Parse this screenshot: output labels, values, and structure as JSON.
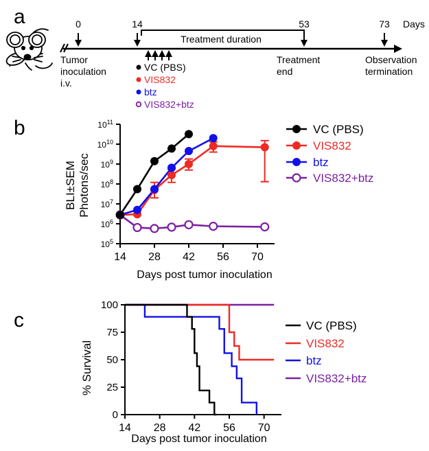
{
  "colors": {
    "vc": "#000000",
    "vis": "#ee2a24",
    "btz": "#1010e8",
    "combo": "#7b1fa2"
  },
  "panel_labels": {
    "a": "a",
    "b": "b",
    "c": "c"
  },
  "timeline": {
    "ticks": [
      {
        "label": "0",
        "day": 0
      },
      {
        "label": "14",
        "day": 14
      },
      {
        "label": "53",
        "day": 53
      },
      {
        "label": "73",
        "day": 73
      }
    ],
    "unit_label": "Days",
    "bracket_label": "Treatment duration",
    "inoculation_label": [
      "Tumor",
      "inoculation",
      "i.v."
    ],
    "treatment_end_label": [
      "Treatment",
      "end"
    ],
    "observation_label": [
      "Observation",
      "termination"
    ],
    "legend": [
      {
        "label": "VC (PBS)",
        "series": "vc",
        "filled": true
      },
      {
        "label": "VIS832",
        "series": "vis",
        "filled": true
      },
      {
        "label": "btz",
        "series": "btz",
        "filled": true
      },
      {
        "label": "VIS832+btz",
        "series": "combo",
        "filled": false
      }
    ]
  },
  "chart_data": [
    {
      "type": "line",
      "panel": "b",
      "ylabel": [
        "BLI±SEM",
        "Photons/sec"
      ],
      "xlabel": "Days post tumor inoculation",
      "yscale": "log",
      "ylim_exp": [
        5,
        11
      ],
      "y_tick_base": "10",
      "y_tick_exponents": [
        "5",
        "6",
        "7",
        "8",
        "9",
        "10",
        "11"
      ],
      "xlim": [
        14,
        77
      ],
      "x_ticks": [
        "14",
        "28",
        "42",
        "56",
        "70"
      ],
      "series": [
        {
          "name": "VC (PBS)",
          "key": "vc",
          "filled": true,
          "x": [
            14,
            21,
            28,
            35,
            42
          ],
          "y": [
            2800000.0,
            55000000.0,
            1400000000.0,
            6000000000.0,
            32000000000.0
          ],
          "err": [
            0,
            0,
            0,
            0,
            0
          ]
        },
        {
          "name": "VIS832",
          "key": "vis",
          "filled": true,
          "x": [
            14,
            21,
            28,
            35,
            42,
            52,
            73
          ],
          "y": [
            2800000.0,
            3000000.0,
            50000000.0,
            280000000.0,
            1000000000.0,
            8000000000.0,
            7000000000.0
          ],
          "err_lo": [
            2800000.0,
            3000000.0,
            20000000.0,
            120000000.0,
            500000000.0,
            4000000000.0,
            130000000.0
          ],
          "err_hi": [
            2800000.0,
            3000000.0,
            120000000.0,
            550000000.0,
            1800000000.0,
            13000000000.0,
            15000000000.0
          ]
        },
        {
          "name": "btz",
          "key": "btz",
          "filled": true,
          "x": [
            14,
            21,
            28,
            35,
            42,
            52
          ],
          "y": [
            2800000.0,
            5000000.0,
            55000000.0,
            650000000.0,
            4500000000.0,
            20000000000.0
          ]
        },
        {
          "name": "VIS832+btz",
          "key": "combo",
          "filled": false,
          "x": [
            14,
            21,
            28,
            35,
            42,
            52,
            73
          ],
          "y": [
            2800000.0,
            650000.0,
            580000.0,
            680000.0,
            900000.0,
            750000.0,
            700000.0
          ]
        }
      ]
    },
    {
      "type": "line",
      "panel": "c",
      "style": "step",
      "ylabel": "% Survival",
      "xlabel": "Days post tumor inoculation",
      "ylim": [
        0,
        100
      ],
      "y_ticks": [
        "0",
        "25",
        "50",
        "75",
        "100"
      ],
      "xlim": [
        14,
        77
      ],
      "x_ticks": [
        "14",
        "28",
        "42",
        "56",
        "70"
      ],
      "series": [
        {
          "name": "VC (PBS)",
          "key": "vc",
          "x": [
            14,
            39,
            39,
            41,
            41,
            42,
            42,
            43,
            43,
            44,
            44,
            48,
            48,
            50,
            50,
            51
          ],
          "y": [
            100,
            100,
            89,
            89,
            78,
            78,
            56,
            56,
            44,
            44,
            22,
            22,
            11,
            11,
            0,
            0
          ]
        },
        {
          "name": "VIS832",
          "key": "vis",
          "x": [
            14,
            56,
            56,
            58,
            58,
            60,
            60,
            74
          ],
          "y": [
            100,
            100,
            75,
            75,
            62.5,
            62.5,
            50,
            50
          ]
        },
        {
          "name": "btz",
          "key": "btz",
          "x": [
            14,
            22,
            22,
            52,
            52,
            54,
            54,
            57,
            57,
            59,
            59,
            61,
            61,
            67,
            67
          ],
          "y": [
            100,
            100,
            89,
            89,
            78,
            78,
            56,
            56,
            44,
            44,
            33,
            33,
            11,
            11,
            0
          ]
        },
        {
          "name": "VIS832+btz",
          "key": "combo",
          "x": [
            14,
            74
          ],
          "y": [
            100,
            100
          ]
        }
      ]
    }
  ]
}
